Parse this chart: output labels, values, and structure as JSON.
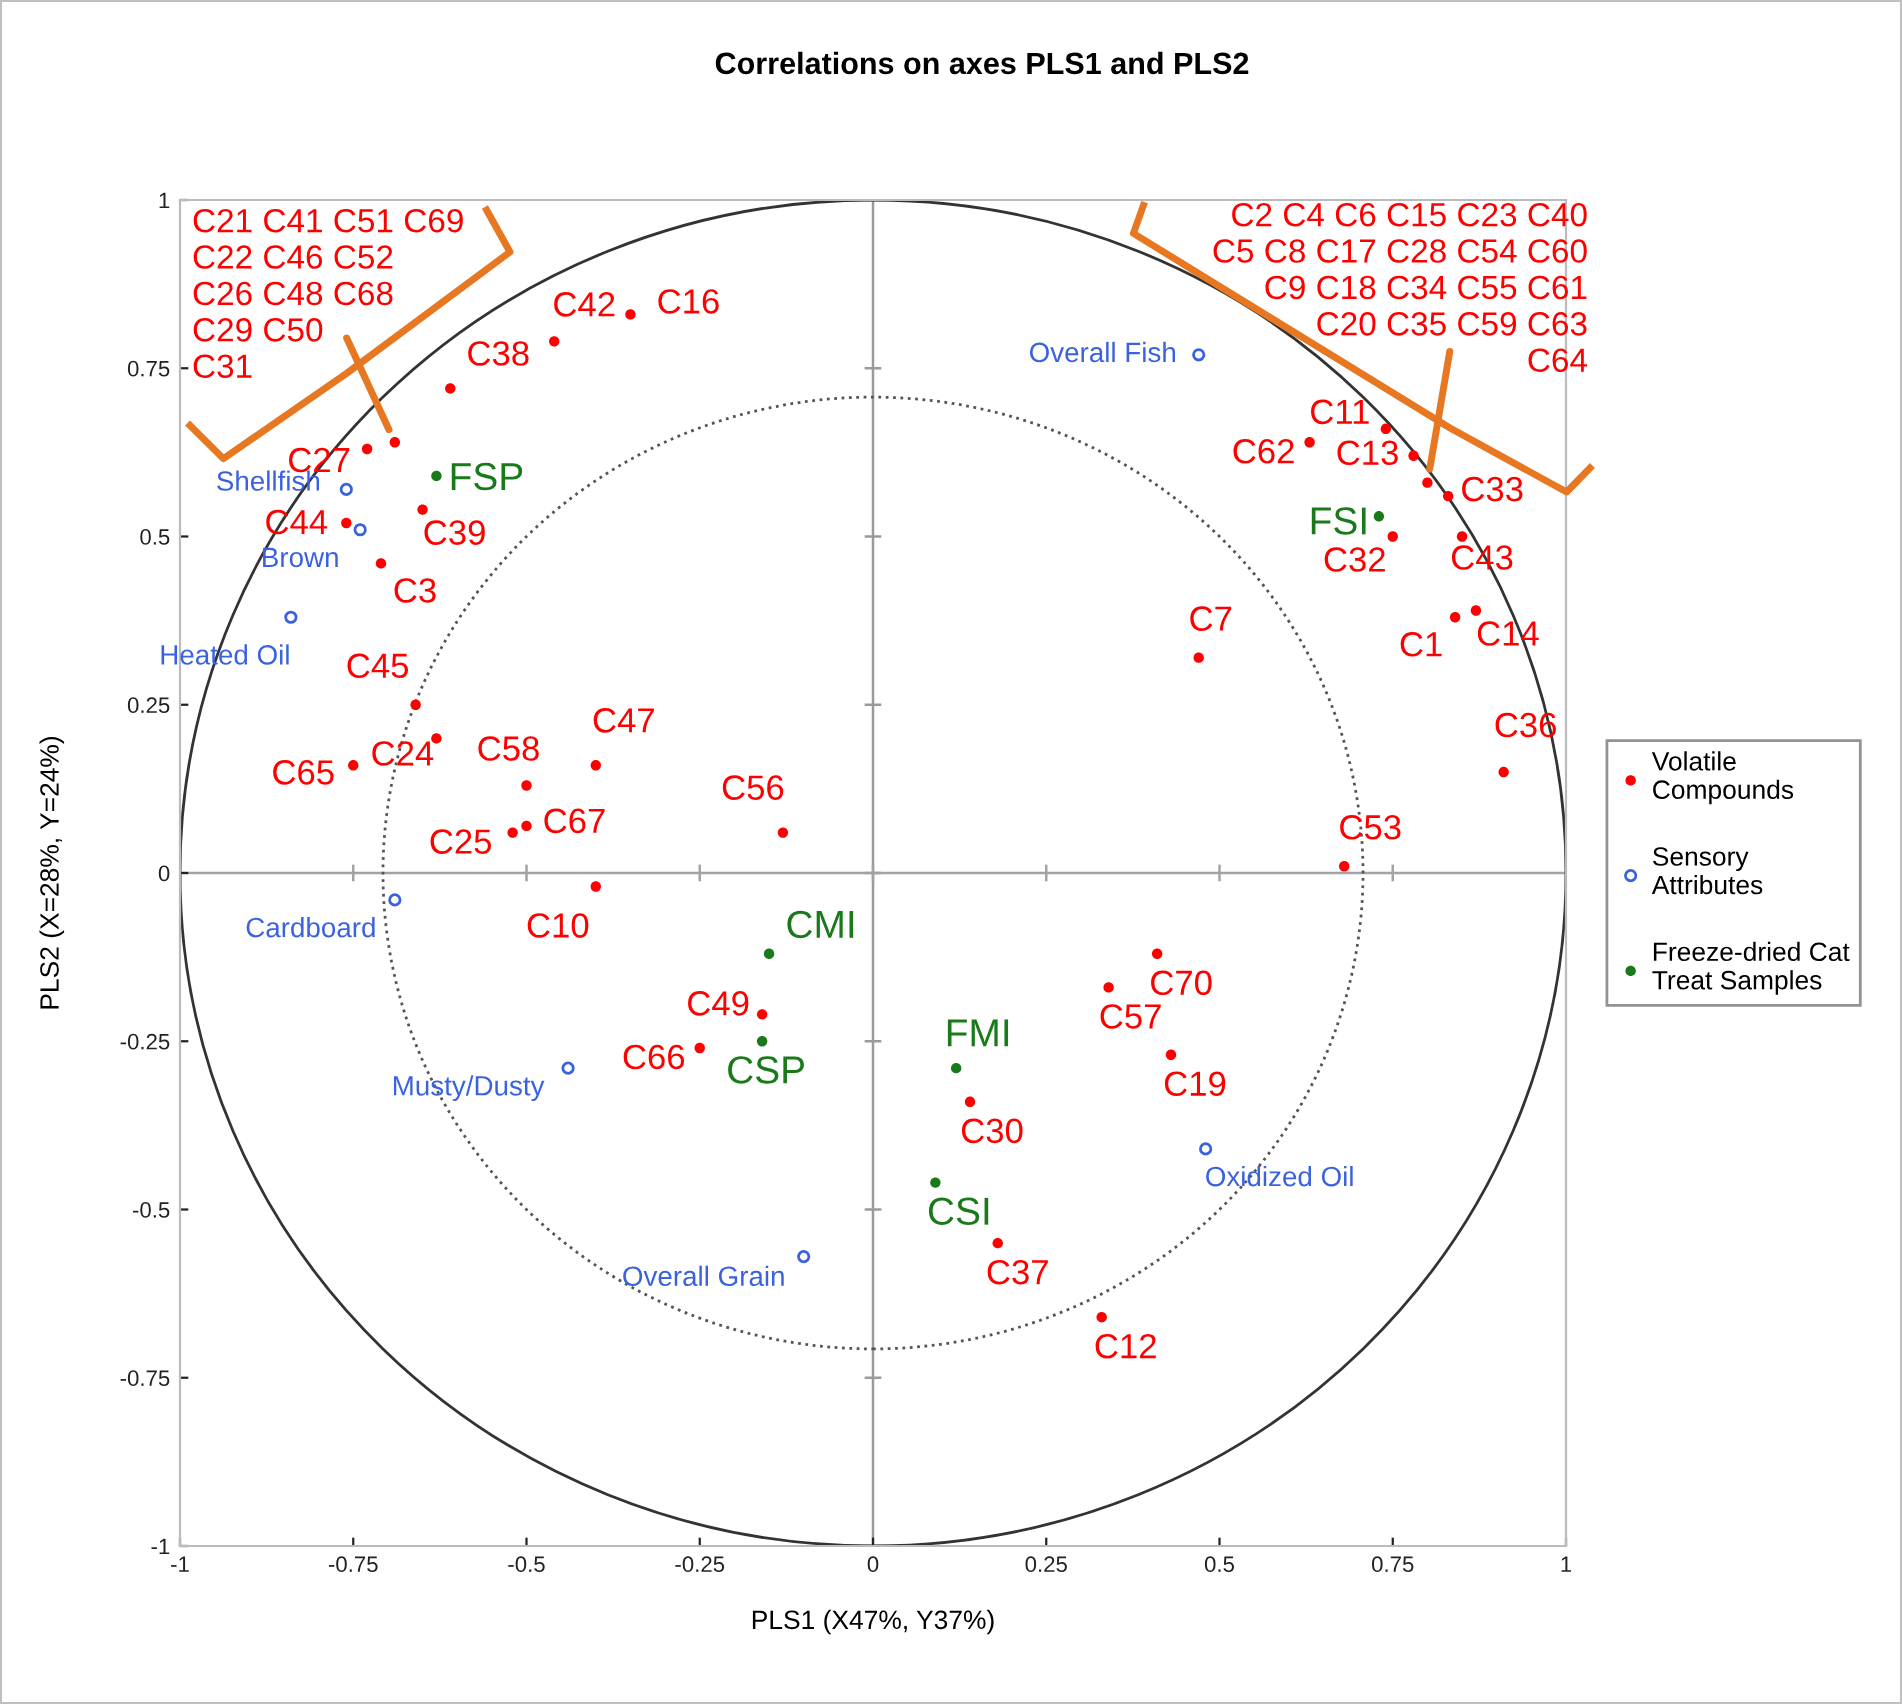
{
  "chart_data": {
    "type": "scatter",
    "title": "Correlations on axes PLS1 and PLS2",
    "xlabel": "PLS1 (X47%, Y37%)",
    "ylabel": "PLS2 (X=28%, Y=24%)",
    "xlim": [
      -1,
      1
    ],
    "ylim": [
      -1,
      1
    ],
    "xticks": [
      -1,
      -0.75,
      -0.5,
      -0.25,
      0,
      0.25,
      0.5,
      0.75,
      1
    ],
    "yticks": [
      -1,
      -0.75,
      -0.5,
      -0.25,
      0,
      0.25,
      0.5,
      0.75,
      1
    ],
    "marker": "circle",
    "legend": "right",
    "ref_lines": [
      {
        "axis": "x",
        "value": 0,
        "color": "#9a9a9a"
      },
      {
        "axis": "y",
        "value": 0,
        "color": "#a3a3a3"
      }
    ],
    "annotations": [
      {
        "text": "C21 C41 C51 C69\nC22 C46 C52\nC26 C48 C68\nC29 C50\nC31",
        "x": -0.69,
        "y": 0.64
      },
      {
        "text": "C2 C4 C6 C15 C23 C40\nC5 C8 C17 C28 C54 C60\nC9 C18 C34 C55 C61\nC20 C35 C59 C63\nC64",
        "x": 0.8,
        "y": 0.58
      }
    ],
    "series": [
      {
        "name": "Volatile Compounds",
        "color": "#ff0000",
        "x": [
          -0.35,
          -0.46,
          -0.61,
          -0.73,
          -0.69,
          -0.65,
          -0.76,
          -0.71,
          -0.66,
          -0.63,
          -0.75,
          -0.5,
          -0.5,
          -0.52,
          -0.4,
          -0.13,
          -0.4,
          -0.16,
          -0.25,
          0.68,
          0.41,
          0.34,
          0.43,
          0.14,
          0.18,
          0.33,
          0.74,
          0.63,
          0.78,
          0.8,
          0.83,
          0.85,
          0.75,
          0.47,
          0.84,
          0.87,
          0.91
        ],
        "values": [
          0.83,
          0.79,
          0.72,
          0.63,
          0.64,
          0.54,
          0.52,
          0.46,
          0.25,
          0.2,
          0.16,
          0.13,
          0.07,
          0.06,
          0.16,
          0.06,
          -0.02,
          -0.21,
          -0.26,
          0.01,
          -0.12,
          -0.17,
          -0.27,
          -0.34,
          -0.55,
          -0.66,
          0.66,
          0.64,
          0.62,
          0.58,
          0.56,
          0.5,
          0.5,
          0.32,
          0.38,
          0.39,
          0.15
        ],
        "value_labels": [
          "C16",
          "C42",
          "C38",
          "C27",
          null,
          "C39",
          "C44",
          "C3",
          "C45",
          "C24",
          "C65",
          "C58",
          "C67",
          "C25",
          "C47",
          "C56",
          "C10",
          "C49",
          "C66",
          "C53",
          "C70",
          "C57",
          "C19",
          "C30",
          "C37",
          "C12",
          "C11",
          "C62",
          "C13",
          null,
          "C33",
          "C43",
          "C32",
          "C7",
          "C1",
          "C14",
          "C36"
        ]
      },
      {
        "name": "Sensory Attributes",
        "color": "#3a62e0",
        "x": [
          0.47,
          -0.76,
          -0.74,
          -0.84,
          -0.69,
          -0.44,
          -0.1,
          0.48
        ],
        "values": [
          0.77,
          0.57,
          0.51,
          0.38,
          -0.04,
          -0.29,
          -0.57,
          -0.41
        ],
        "value_labels": [
          "Overall Fish",
          "Shellfish",
          "Brown",
          "Heated Oil",
          "Cardboard",
          "Musty/Dusty",
          "Overall Grain",
          "Oxidized Oil"
        ]
      },
      {
        "name": "Freeze-dried Cat Treat Samples",
        "color": "#1a7a1a",
        "x": [
          -0.63,
          0.73,
          -0.15,
          -0.16,
          0.12,
          0.09
        ],
        "values": [
          0.59,
          0.53,
          -0.12,
          -0.25,
          -0.29,
          -0.46
        ],
        "value_labels": [
          "FSP",
          "FSI",
          "CMI",
          "CSP",
          "FMI",
          "CSI"
        ]
      }
    ]
  }
}
